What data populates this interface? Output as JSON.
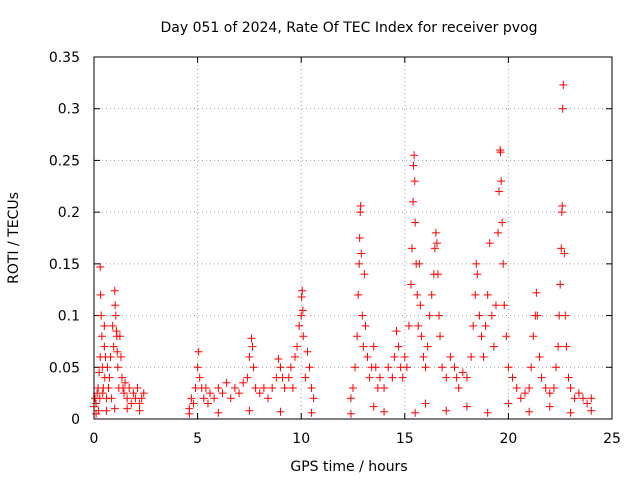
{
  "chart_data": {
    "type": "scatter",
    "title": "Day 051 of 2024, Rate Of TEC Index for receiver pvog",
    "xlabel": "GPS time / hours",
    "ylabel": "ROTI / TECUs",
    "xlim": [
      0,
      25
    ],
    "ylim": [
      0,
      0.35
    ],
    "xticks": [
      0,
      5,
      10,
      15,
      20,
      25
    ],
    "yticks": [
      0,
      0.05,
      0.1,
      0.15,
      0.2,
      0.25,
      0.3,
      0.35
    ],
    "xtick_labels": [
      "0",
      "5",
      "10",
      "15",
      "20",
      "25"
    ],
    "ytick_labels": [
      "0",
      "0.05",
      "0.1",
      "0.15",
      "0.2",
      "0.25",
      "0.3",
      "0.35"
    ],
    "grid": true,
    "marker": "+",
    "series": [
      {
        "name": "ROTI",
        "color": "#ff0000",
        "points": [
          [
            0.0,
            0.012
          ],
          [
            0.05,
            0.02
          ],
          [
            0.1,
            0.015
          ],
          [
            0.15,
            0.025
          ],
          [
            0.2,
            0.03
          ],
          [
            0.22,
            0.008
          ],
          [
            0.25,
            0.045
          ],
          [
            0.28,
            0.02
          ],
          [
            0.3,
            0.06
          ],
          [
            0.3,
            0.147
          ],
          [
            0.32,
            0.12
          ],
          [
            0.35,
            0.1
          ],
          [
            0.38,
            0.08
          ],
          [
            0.4,
            0.05
          ],
          [
            0.42,
            0.025
          ],
          [
            0.45,
            0.03
          ],
          [
            0.5,
            0.07
          ],
          [
            0.5,
            0.09
          ],
          [
            0.52,
            0.04
          ],
          [
            0.55,
            0.06
          ],
          [
            0.6,
            0.02
          ],
          [
            0.65,
            0.05
          ],
          [
            0.7,
            0.03
          ],
          [
            0.75,
            0.04
          ],
          [
            0.8,
            0.06
          ],
          [
            0.85,
            0.02
          ],
          [
            0.9,
            0.09
          ],
          [
            0.95,
            0.07
          ],
          [
            1.0,
            0.124
          ],
          [
            1.02,
            0.11
          ],
          [
            1.05,
            0.1
          ],
          [
            1.08,
            0.085
          ],
          [
            1.1,
            0.08
          ],
          [
            1.12,
            0.065
          ],
          [
            1.15,
            0.05
          ],
          [
            1.2,
            0.03
          ],
          [
            1.25,
            0.08
          ],
          [
            1.3,
            0.06
          ],
          [
            1.35,
            0.04
          ],
          [
            1.4,
            0.03
          ],
          [
            1.45,
            0.025
          ],
          [
            1.5,
            0.035
          ],
          [
            1.6,
            0.02
          ],
          [
            1.7,
            0.03
          ],
          [
            1.8,
            0.015
          ],
          [
            1.9,
            0.025
          ],
          [
            2.0,
            0.02
          ],
          [
            2.1,
            0.03
          ],
          [
            2.2,
            0.015
          ],
          [
            2.3,
            0.02
          ],
          [
            2.4,
            0.025
          ],
          [
            0.1,
            0.005
          ],
          [
            0.6,
            0.008
          ],
          [
            1.0,
            0.01
          ],
          [
            1.6,
            0.01
          ],
          [
            2.2,
            0.008
          ],
          [
            4.6,
            0.01
          ],
          [
            4.7,
            0.02
          ],
          [
            4.8,
            0.015
          ],
          [
            4.9,
            0.03
          ],
          [
            5.0,
            0.05
          ],
          [
            5.05,
            0.065
          ],
          [
            5.1,
            0.04
          ],
          [
            5.2,
            0.03
          ],
          [
            5.3,
            0.02
          ],
          [
            5.4,
            0.03
          ],
          [
            5.5,
            0.015
          ],
          [
            5.6,
            0.025
          ],
          [
            5.8,
            0.02
          ],
          [
            6.0,
            0.03
          ],
          [
            6.2,
            0.025
          ],
          [
            6.4,
            0.035
          ],
          [
            6.6,
            0.02
          ],
          [
            6.8,
            0.03
          ],
          [
            7.0,
            0.025
          ],
          [
            7.2,
            0.035
          ],
          [
            7.4,
            0.04
          ],
          [
            7.5,
            0.06
          ],
          [
            7.6,
            0.078
          ],
          [
            7.65,
            0.07
          ],
          [
            7.7,
            0.05
          ],
          [
            7.8,
            0.03
          ],
          [
            8.0,
            0.025
          ],
          [
            8.2,
            0.03
          ],
          [
            8.4,
            0.02
          ],
          [
            8.6,
            0.03
          ],
          [
            8.8,
            0.04
          ],
          [
            8.9,
            0.058
          ],
          [
            9.0,
            0.05
          ],
          [
            9.1,
            0.04
          ],
          [
            9.2,
            0.03
          ],
          [
            9.4,
            0.04
          ],
          [
            9.5,
            0.05
          ],
          [
            9.6,
            0.03
          ],
          [
            9.7,
            0.06
          ],
          [
            9.8,
            0.07
          ],
          [
            9.9,
            0.09
          ],
          [
            10.0,
            0.1
          ],
          [
            10.02,
            0.118
          ],
          [
            10.05,
            0.124
          ],
          [
            10.08,
            0.105
          ],
          [
            10.1,
            0.08
          ],
          [
            10.2,
            0.04
          ],
          [
            10.3,
            0.065
          ],
          [
            10.4,
            0.05
          ],
          [
            10.5,
            0.03
          ],
          [
            10.6,
            0.02
          ],
          [
            4.6,
            0.005
          ],
          [
            6.0,
            0.006
          ],
          [
            7.5,
            0.008
          ],
          [
            9.0,
            0.007
          ],
          [
            10.5,
            0.006
          ],
          [
            12.4,
            0.02
          ],
          [
            12.5,
            0.03
          ],
          [
            12.6,
            0.05
          ],
          [
            12.7,
            0.08
          ],
          [
            12.75,
            0.12
          ],
          [
            12.8,
            0.15
          ],
          [
            12.82,
            0.175
          ],
          [
            12.85,
            0.2
          ],
          [
            12.87,
            0.206
          ],
          [
            12.9,
            0.16
          ],
          [
            12.95,
            0.1
          ],
          [
            13.0,
            0.07
          ],
          [
            13.05,
            0.14
          ],
          [
            13.1,
            0.09
          ],
          [
            13.2,
            0.06
          ],
          [
            13.3,
            0.04
          ],
          [
            13.4,
            0.05
          ],
          [
            13.5,
            0.07
          ],
          [
            13.6,
            0.05
          ],
          [
            13.7,
            0.03
          ],
          [
            13.8,
            0.04
          ],
          [
            14.0,
            0.03
          ],
          [
            14.2,
            0.05
          ],
          [
            14.4,
            0.04
          ],
          [
            14.5,
            0.06
          ],
          [
            14.6,
            0.085
          ],
          [
            14.7,
            0.07
          ],
          [
            14.8,
            0.05
          ],
          [
            14.9,
            0.04
          ],
          [
            15.0,
            0.06
          ],
          [
            15.1,
            0.05
          ],
          [
            15.2,
            0.09
          ],
          [
            15.3,
            0.13
          ],
          [
            15.35,
            0.165
          ],
          [
            15.4,
            0.21
          ],
          [
            15.42,
            0.245
          ],
          [
            15.45,
            0.255
          ],
          [
            15.48,
            0.23
          ],
          [
            15.5,
            0.19
          ],
          [
            15.55,
            0.15
          ],
          [
            15.6,
            0.12
          ],
          [
            15.65,
            0.09
          ],
          [
            15.7,
            0.15
          ],
          [
            15.75,
            0.11
          ],
          [
            15.8,
            0.08
          ],
          [
            15.9,
            0.06
          ],
          [
            16.0,
            0.05
          ],
          [
            16.1,
            0.07
          ],
          [
            16.2,
            0.1
          ],
          [
            16.3,
            0.12
          ],
          [
            16.4,
            0.14
          ],
          [
            16.45,
            0.165
          ],
          [
            16.5,
            0.18
          ],
          [
            16.55,
            0.17
          ],
          [
            16.6,
            0.14
          ],
          [
            16.65,
            0.1
          ],
          [
            16.7,
            0.08
          ],
          [
            16.8,
            0.05
          ],
          [
            17.0,
            0.04
          ],
          [
            17.2,
            0.06
          ],
          [
            17.4,
            0.05
          ],
          [
            17.5,
            0.04
          ],
          [
            17.6,
            0.03
          ],
          [
            17.8,
            0.045
          ],
          [
            18.0,
            0.04
          ],
          [
            18.2,
            0.06
          ],
          [
            18.3,
            0.09
          ],
          [
            18.4,
            0.12
          ],
          [
            18.45,
            0.15
          ],
          [
            18.5,
            0.14
          ],
          [
            18.6,
            0.1
          ],
          [
            18.7,
            0.08
          ],
          [
            18.8,
            0.06
          ],
          [
            18.9,
            0.09
          ],
          [
            19.0,
            0.12
          ],
          [
            19.1,
            0.17
          ],
          [
            19.2,
            0.1
          ],
          [
            19.3,
            0.07
          ],
          [
            19.4,
            0.11
          ],
          [
            19.5,
            0.18
          ],
          [
            19.55,
            0.22
          ],
          [
            19.6,
            0.26
          ],
          [
            19.62,
            0.258
          ],
          [
            19.65,
            0.23
          ],
          [
            19.7,
            0.19
          ],
          [
            19.75,
            0.15
          ],
          [
            19.8,
            0.11
          ],
          [
            19.9,
            0.08
          ],
          [
            20.0,
            0.05
          ],
          [
            20.2,
            0.04
          ],
          [
            20.4,
            0.03
          ],
          [
            20.6,
            0.02
          ],
          [
            20.8,
            0.025
          ],
          [
            21.0,
            0.03
          ],
          [
            21.1,
            0.05
          ],
          [
            21.2,
            0.08
          ],
          [
            21.3,
            0.1
          ],
          [
            21.35,
            0.122
          ],
          [
            21.4,
            0.1
          ],
          [
            21.5,
            0.06
          ],
          [
            21.6,
            0.04
          ],
          [
            21.8,
            0.03
          ],
          [
            22.0,
            0.025
          ],
          [
            22.2,
            0.03
          ],
          [
            22.3,
            0.05
          ],
          [
            22.4,
            0.07
          ],
          [
            22.45,
            0.1
          ],
          [
            22.5,
            0.13
          ],
          [
            22.55,
            0.165
          ],
          [
            22.58,
            0.2
          ],
          [
            22.6,
            0.206
          ],
          [
            22.62,
            0.3
          ],
          [
            22.65,
            0.323
          ],
          [
            22.7,
            0.16
          ],
          [
            22.75,
            0.1
          ],
          [
            22.8,
            0.07
          ],
          [
            22.9,
            0.04
          ],
          [
            23.0,
            0.03
          ],
          [
            23.2,
            0.02
          ],
          [
            23.4,
            0.025
          ],
          [
            23.6,
            0.02
          ],
          [
            23.8,
            0.015
          ],
          [
            24.0,
            0.02
          ],
          [
            12.4,
            0.005
          ],
          [
            14.0,
            0.007
          ],
          [
            15.5,
            0.006
          ],
          [
            17.0,
            0.008
          ],
          [
            19.0,
            0.006
          ],
          [
            21.0,
            0.007
          ],
          [
            23.0,
            0.006
          ],
          [
            13.5,
            0.012
          ],
          [
            16.0,
            0.015
          ],
          [
            18.0,
            0.012
          ],
          [
            20.0,
            0.015
          ],
          [
            22.0,
            0.012
          ],
          [
            24.0,
            0.008
          ]
        ]
      }
    ]
  }
}
